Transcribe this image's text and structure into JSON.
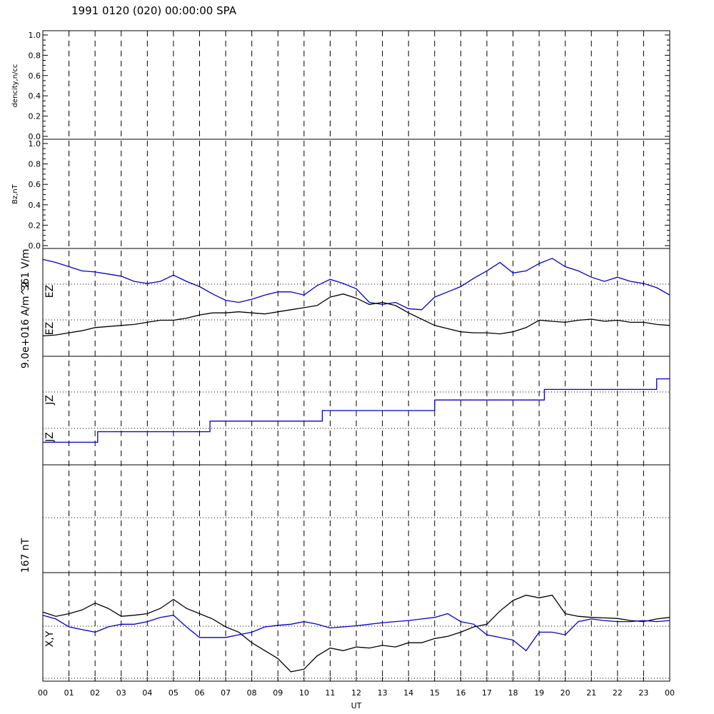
{
  "title": "1991 0120 (020) 00:00:00 SPA",
  "xaxis": {
    "label": "UT",
    "ticks": [
      "00",
      "01",
      "02",
      "03",
      "04",
      "05",
      "06",
      "07",
      "08",
      "09",
      "10",
      "11",
      "12",
      "13",
      "14",
      "15",
      "16",
      "17",
      "18",
      "19",
      "20",
      "21",
      "22",
      "23",
      "00"
    ]
  },
  "panels": {
    "density": {
      "ylabel": "dencity,n/cc",
      "ticks": [
        "0.0",
        "0.2",
        "0.4",
        "0.6",
        "0.8",
        "1.0"
      ]
    },
    "bz": {
      "ylabel": "Bz,nT",
      "ticks": [
        "0.0",
        "0.2",
        "0.4",
        "0.6",
        "0.8",
        "1.0"
      ]
    },
    "ez": {
      "scale_label": "361 V/m",
      "label_upper": "EZ",
      "label_lower": "EZ"
    },
    "jz": {
      "scale_label": "9.0e+016 A/m^2",
      "label_upper": "JZ",
      "label_lower": "JZ"
    },
    "empty": {
      "scale_label": "167 nT"
    },
    "xy": {
      "label": "X,Y"
    }
  },
  "colors": {
    "series_blue": "#0000cc",
    "series_black": "#000000",
    "axes": "#000000"
  },
  "chart_data": [
    {
      "type": "line",
      "panel": "density",
      "ylabel": "dencity,n/cc",
      "ylim": [
        0,
        1
      ],
      "xlim_hours": [
        0,
        24
      ],
      "series": []
    },
    {
      "type": "line",
      "panel": "bz",
      "ylabel": "Bz,nT",
      "ylim": [
        0,
        1
      ],
      "xlim_hours": [
        0,
        24
      ],
      "series": []
    },
    {
      "type": "line",
      "panel": "EZ",
      "xlim_hours": [
        0,
        24
      ],
      "ylim": [
        0,
        1
      ],
      "series": [
        {
          "color": "blue",
          "x": [
            0,
            0.5,
            1,
            1.5,
            2,
            2.5,
            3,
            3.5,
            4,
            4.5,
            5,
            5.5,
            6,
            6.5,
            7,
            7.5,
            8,
            8.5,
            9,
            9.5,
            10,
            10.5,
            11,
            11.5,
            12,
            12.5,
            13,
            13.5,
            14,
            14.5,
            15,
            15.5,
            16,
            16.5,
            17,
            17.5,
            18,
            18.5,
            19,
            19.5,
            20,
            20.5,
            21,
            21.5,
            22,
            22.5,
            23,
            23.5,
            24
          ],
          "y": [
            0.91,
            0.88,
            0.84,
            0.8,
            0.79,
            0.77,
            0.75,
            0.7,
            0.68,
            0.7,
            0.76,
            0.7,
            0.65,
            0.58,
            0.52,
            0.5,
            0.53,
            0.57,
            0.6,
            0.6,
            0.57,
            0.66,
            0.72,
            0.68,
            0.63,
            0.5,
            0.48,
            0.5,
            0.44,
            0.43,
            0.55,
            0.6,
            0.65,
            0.73,
            0.8,
            0.88,
            0.78,
            0.8,
            0.87,
            0.92,
            0.84,
            0.8,
            0.74,
            0.7,
            0.74,
            0.7,
            0.68,
            0.64,
            0.57
          ]
        },
        {
          "color": "black",
          "x": [
            0,
            0.5,
            1,
            1.5,
            2,
            2.5,
            3,
            3.5,
            4,
            4.5,
            5,
            5.5,
            6,
            6.5,
            7,
            7.5,
            8,
            8.5,
            9,
            9.5,
            10,
            10.5,
            11,
            11.5,
            12,
            12.5,
            13,
            13.5,
            14,
            14.5,
            15,
            15.5,
            16,
            16.5,
            17,
            17.5,
            18,
            18.5,
            19,
            19.5,
            20,
            20.5,
            21,
            21.5,
            22,
            22.5,
            23,
            23.5,
            24
          ],
          "y": [
            0.18,
            0.19,
            0.21,
            0.23,
            0.26,
            0.27,
            0.28,
            0.29,
            0.31,
            0.33,
            0.33,
            0.35,
            0.38,
            0.4,
            0.4,
            0.41,
            0.4,
            0.39,
            0.41,
            0.43,
            0.45,
            0.47,
            0.55,
            0.58,
            0.54,
            0.48,
            0.5,
            0.47,
            0.4,
            0.34,
            0.28,
            0.25,
            0.22,
            0.21,
            0.21,
            0.2,
            0.22,
            0.26,
            0.33,
            0.32,
            0.31,
            0.33,
            0.34,
            0.32,
            0.33,
            0.31,
            0.31,
            0.29,
            0.28
          ]
        }
      ]
    },
    {
      "type": "line",
      "panel": "JZ",
      "xlim_hours": [
        0,
        24
      ],
      "ylim": [
        0,
        1
      ],
      "series": [
        {
          "color": "blue",
          "x": [
            0,
            2.1,
            2.1,
            6.4,
            6.4,
            10.7,
            10.7,
            15,
            15,
            19.2,
            19.2,
            23.5,
            23.5,
            24
          ],
          "y": [
            0.2,
            0.2,
            0.3,
            0.3,
            0.4,
            0.4,
            0.5,
            0.5,
            0.6,
            0.6,
            0.7,
            0.7,
            0.8,
            0.8
          ]
        }
      ]
    },
    {
      "type": "line",
      "panel": "X,Y",
      "xlim_hours": [
        0,
        24
      ],
      "ylim": [
        -1,
        1
      ],
      "series": [
        {
          "color": "black",
          "x": [
            0,
            0.5,
            1,
            1.5,
            2,
            2.5,
            3,
            3.5,
            4,
            4.5,
            5,
            5.5,
            6,
            6.5,
            7,
            7.5,
            8,
            8.5,
            9,
            9.5,
            10,
            10.5,
            11,
            11.5,
            12,
            12.5,
            13,
            13.5,
            14,
            14.5,
            15,
            15.5,
            16,
            16.5,
            17,
            17.5,
            18,
            18.5,
            19,
            19.5,
            20,
            20.5,
            21,
            21.5,
            22,
            22.5,
            23,
            23.5,
            24
          ],
          "y": [
            0.28,
            0.2,
            0.25,
            0.32,
            0.45,
            0.35,
            0.2,
            0.22,
            0.25,
            0.35,
            0.52,
            0.35,
            0.25,
            0.15,
            0.0,
            -0.1,
            -0.3,
            -0.45,
            -0.6,
            -0.85,
            -0.8,
            -0.55,
            -0.4,
            -0.45,
            -0.38,
            -0.4,
            -0.35,
            -0.38,
            -0.3,
            -0.3,
            -0.22,
            -0.18,
            -0.1,
            0.0,
            0.05,
            0.3,
            0.5,
            0.6,
            0.55,
            0.6,
            0.25,
            0.2,
            0.18,
            0.17,
            0.16,
            0.12,
            0.1,
            0.15,
            0.18
          ]
        },
        {
          "color": "blue",
          "x": [
            0,
            0.5,
            1,
            1.5,
            2,
            2.5,
            3,
            3.5,
            4,
            4.5,
            5,
            5.5,
            6,
            6.5,
            7,
            7.5,
            8,
            8.5,
            9,
            9.5,
            10,
            10.5,
            11,
            11.5,
            12,
            12.5,
            13,
            13.5,
            14,
            14.5,
            15,
            15.5,
            16,
            16.5,
            17,
            17.5,
            18,
            18.5,
            19,
            19.5,
            20,
            20.5,
            21,
            21.5,
            22,
            22.5,
            23,
            23.5,
            24
          ],
          "y": [
            0.22,
            0.15,
            0.0,
            -0.05,
            -0.1,
            0.0,
            0.05,
            0.05,
            0.1,
            0.18,
            0.22,
            0.0,
            -0.2,
            -0.2,
            -0.2,
            -0.15,
            -0.1,
            0.0,
            0.03,
            0.05,
            0.1,
            0.05,
            -0.02,
            0.0,
            0.02,
            0.05,
            0.08,
            0.1,
            0.12,
            0.15,
            0.18,
            0.25,
            0.1,
            0.05,
            -0.15,
            -0.2,
            -0.25,
            -0.45,
            -0.1,
            -0.1,
            -0.15,
            0.1,
            0.15,
            0.12,
            0.1,
            0.1,
            0.12,
            0.1,
            0.12
          ]
        }
      ]
    }
  ]
}
